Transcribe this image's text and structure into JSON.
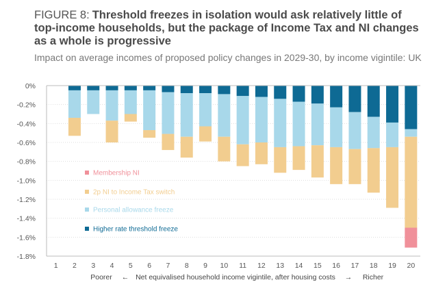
{
  "figure_label": "FIGURE 8:",
  "title": "Threshold freezes in isolation would ask relatively little of top-income households, but the package of Income Tax and NI changes as a whole is progressive",
  "subtitle": "Impact on average incomes of proposed policy changes in 2029-30, by income vigintile: UK",
  "colors": {
    "membership_ni": "#f0909a",
    "ni_switch": "#f2cd8f",
    "personal_allowance": "#a8d8ea",
    "higher_rate": "#0e6a94",
    "axis": "#bbbbbb",
    "grid": "#dddddd"
  },
  "chart_data": {
    "type": "bar",
    "stacked": true,
    "categories": [
      "1",
      "2",
      "3",
      "4",
      "5",
      "6",
      "7",
      "8",
      "9",
      "10",
      "11",
      "12",
      "13",
      "14",
      "15",
      "16",
      "17",
      "18",
      "19",
      "20"
    ],
    "series": [
      {
        "name": "Higher rate threshold freeze",
        "key": "higher_rate",
        "values": [
          0,
          -0.05,
          -0.05,
          -0.05,
          -0.05,
          -0.05,
          -0.07,
          -0.08,
          -0.08,
          -0.09,
          -0.11,
          -0.12,
          -0.14,
          -0.17,
          -0.19,
          -0.23,
          -0.28,
          -0.33,
          -0.39,
          -0.46
        ]
      },
      {
        "name": "Personal allowance freeze",
        "key": "personal_allowance",
        "values": [
          0,
          -0.29,
          -0.25,
          -0.32,
          -0.25,
          -0.42,
          -0.44,
          -0.46,
          -0.35,
          -0.45,
          -0.51,
          -0.48,
          -0.51,
          -0.47,
          -0.44,
          -0.42,
          -0.39,
          -0.33,
          -0.26,
          -0.08
        ]
      },
      {
        "name": "2p NI to Income Tax switch",
        "key": "ni_switch",
        "values": [
          0,
          -0.19,
          0,
          -0.23,
          -0.08,
          -0.08,
          -0.17,
          -0.22,
          -0.16,
          -0.26,
          -0.23,
          -0.23,
          -0.27,
          -0.25,
          -0.34,
          -0.39,
          -0.37,
          -0.47,
          -0.64,
          -0.96
        ]
      },
      {
        "name": "Membership NI",
        "key": "membership_ni",
        "values": [
          0,
          0,
          0,
          0,
          0,
          0,
          0,
          0,
          0,
          0,
          0,
          0,
          0,
          0,
          0,
          0,
          0,
          0,
          0,
          -0.21
        ]
      }
    ],
    "ylim": [
      -1.8,
      0
    ],
    "yticks": [
      "0%",
      "-0.2%",
      "-0.4%",
      "-0.6%",
      "-0.8%",
      "-1.0%",
      "-1.2%",
      "-1.4%",
      "-1.6%",
      "-1.8%"
    ],
    "xlabel": {
      "left": "Poorer",
      "left_arrow": "←",
      "center": "Net equivalised household income vigintile, after housing costs",
      "right_arrow": "→",
      "right": "Richer"
    },
    "legend": [
      {
        "label": "Membership NI",
        "key": "membership_ni"
      },
      {
        "label": "2p NI to Income Tax switch",
        "key": "ni_switch"
      },
      {
        "label": "Personal allowance freeze",
        "key": "personal_allowance"
      },
      {
        "label": "Higher rate threshold freeze",
        "key": "higher_rate"
      }
    ],
    "legend_position": "inside-left",
    "grid": true
  }
}
